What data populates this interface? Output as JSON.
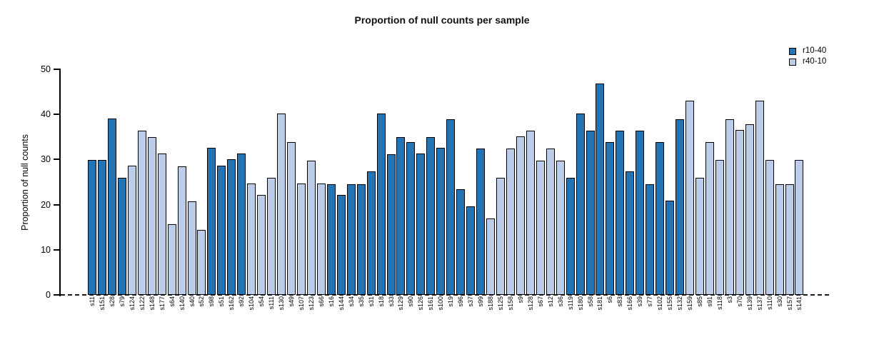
{
  "chart_data": {
    "type": "bar",
    "title": "Proportion of null counts per sample",
    "xlabel": "",
    "ylabel": "Proportion of null counts",
    "ylim": [
      0,
      50
    ],
    "y_ticks": [
      0,
      10,
      20,
      30,
      40,
      50
    ],
    "grid": false,
    "legend_position": "top-right",
    "zero_line_style": "dashed",
    "legend": [
      {
        "label": "r10-40",
        "color": "#2374B5"
      },
      {
        "label": "r40-10",
        "color": "#BCCDE9"
      }
    ],
    "bar_border_color": "#000000",
    "categories": [
      "s11",
      "s151",
      "s28",
      "s79",
      "s124",
      "s122",
      "s148",
      "s177",
      "s64",
      "s140",
      "s40",
      "s52",
      "s98",
      "s51",
      "s162",
      "s92",
      "s104",
      "s54",
      "s111",
      "s130",
      "s49",
      "s107",
      "s123",
      "s66",
      "s16",
      "s144",
      "s34",
      "s35",
      "s31",
      "s18",
      "s33",
      "s129",
      "s90",
      "s126",
      "s161",
      "s100",
      "s19",
      "s96",
      "s37",
      "s99",
      "s188",
      "s125",
      "s158",
      "s9",
      "s128",
      "s67",
      "s12",
      "s36",
      "s119",
      "s180",
      "s58",
      "s181",
      "s6",
      "s83",
      "s166",
      "s39",
      "s77",
      "s102",
      "s155",
      "s132",
      "s159",
      "s85",
      "s91",
      "s118",
      "s3",
      "s70",
      "s139",
      "s137",
      "s110",
      "s30",
      "s157",
      "s141"
    ],
    "values": [
      29.9,
      29.9,
      39.1,
      26.0,
      28.6,
      36.4,
      35.0,
      31.3,
      15.7,
      28.5,
      20.8,
      14.4,
      32.6,
      28.6,
      30.0,
      31.3,
      24.7,
      22.2,
      26.0,
      40.2,
      33.8,
      24.7,
      29.8,
      24.7,
      24.6,
      22.1,
      24.6,
      24.6,
      27.3,
      40.2,
      31.2,
      35.0,
      33.8,
      31.3,
      35.0,
      32.6,
      39.0,
      23.4,
      19.6,
      32.5,
      17.0,
      26.0,
      32.5,
      35.1,
      36.4,
      29.8,
      32.5,
      29.8,
      26.0,
      40.2,
      36.4,
      46.9,
      33.8,
      36.4,
      27.3,
      36.4,
      24.6,
      33.8,
      20.9,
      39.0,
      43.0,
      26.0,
      33.8,
      29.9,
      39.0,
      36.5,
      37.8,
      43.0,
      29.9,
      24.6,
      24.6,
      29.9
    ],
    "groups": [
      "r10-40",
      "r10-40",
      "r10-40",
      "r10-40",
      "r40-10",
      "r40-10",
      "r40-10",
      "r40-10",
      "r40-10",
      "r40-10",
      "r40-10",
      "r40-10",
      "r10-40",
      "r10-40",
      "r10-40",
      "r10-40",
      "r40-10",
      "r40-10",
      "r40-10",
      "r40-10",
      "r40-10",
      "r40-10",
      "r40-10",
      "r40-10",
      "r10-40",
      "r10-40",
      "r10-40",
      "r10-40",
      "r10-40",
      "r10-40",
      "r10-40",
      "r10-40",
      "r10-40",
      "r10-40",
      "r10-40",
      "r10-40",
      "r10-40",
      "r10-40",
      "r10-40",
      "r10-40",
      "r40-10",
      "r40-10",
      "r40-10",
      "r40-10",
      "r40-10",
      "r40-10",
      "r40-10",
      "r40-10",
      "r10-40",
      "r10-40",
      "r10-40",
      "r10-40",
      "r10-40",
      "r10-40",
      "r10-40",
      "r10-40",
      "r10-40",
      "r10-40",
      "r10-40",
      "r10-40",
      "r40-10",
      "r40-10",
      "r40-10",
      "r40-10",
      "r40-10",
      "r40-10",
      "r40-10",
      "r40-10",
      "r40-10",
      "r40-10",
      "r40-10",
      "r40-10"
    ]
  }
}
